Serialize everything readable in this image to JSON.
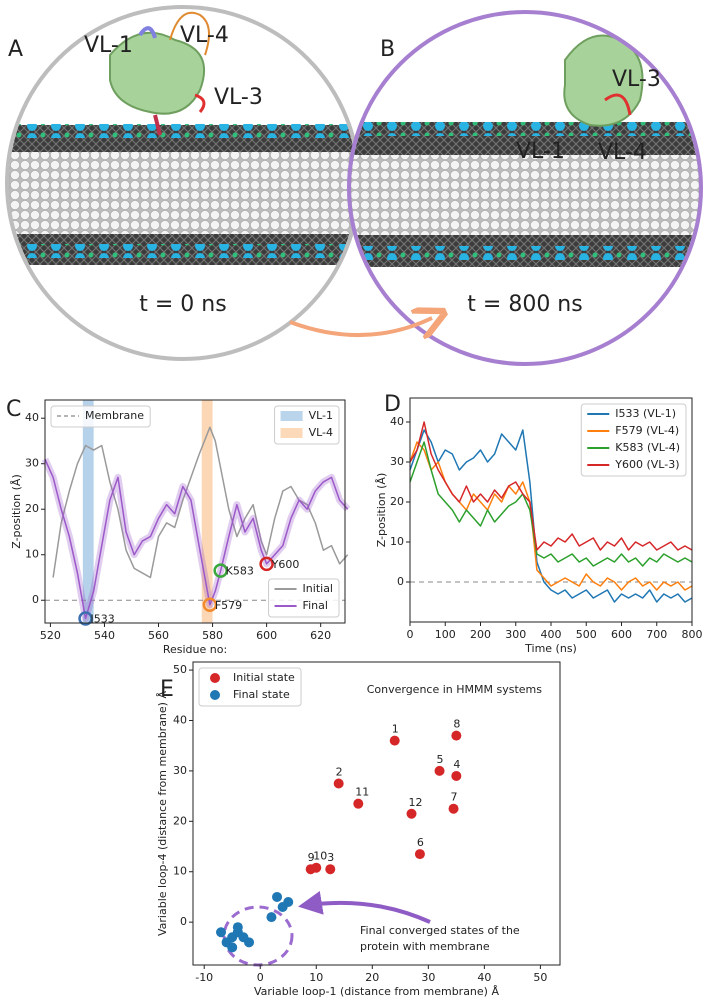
{
  "illustrations": [
    {
      "panel_label": "A",
      "border_color": "#bdbdbd",
      "caption": "t = 0 ns",
      "labels": [
        {
          "text": "VL-1",
          "color": "#2020c0"
        },
        {
          "text": "VL-4",
          "color": "#e07b10"
        },
        {
          "text": "VL-3",
          "color": "#e02020"
        }
      ]
    },
    {
      "panel_label": "B",
      "border_color": "#a77fd0",
      "caption": "t = 800 ns",
      "labels": [
        {
          "text": "VL-3",
          "color": "#e02020"
        },
        {
          "text": "VL-1",
          "color": "#2020c0"
        },
        {
          "text": "VL-4",
          "color": "#e07b10"
        }
      ]
    }
  ],
  "chart_data": [
    {
      "type": "line",
      "panel_label": "C",
      "x": [
        518,
        521,
        524,
        527,
        530,
        533,
        536,
        539,
        542,
        545,
        548,
        551,
        554,
        557,
        560,
        563,
        566,
        569,
        572,
        575,
        579,
        581,
        583,
        586,
        589,
        592,
        595,
        598,
        600,
        603,
        606,
        609,
        612,
        615,
        618,
        621,
        624,
        627,
        630
      ],
      "series": [
        {
          "name": "Initial",
          "color": "#9a9a9a",
          "values": [
            null,
            5,
            17,
            24,
            30,
            34,
            33,
            34,
            26,
            20,
            11,
            7,
            6,
            5,
            14,
            17,
            16,
            22,
            27,
            32,
            38,
            35,
            29,
            20,
            14,
            18,
            21,
            13,
            10,
            18,
            24,
            25,
            22,
            21,
            17,
            11,
            12,
            8,
            10
          ]
        },
        {
          "name": "Final",
          "color": "#9b59c9",
          "band": true,
          "values": [
            31,
            27,
            20,
            14,
            6,
            -4,
            2,
            12,
            22,
            27,
            15,
            10,
            13,
            14,
            18,
            21,
            19,
            25,
            22,
            12,
            -1,
            2,
            6.5,
            14,
            21,
            15,
            18,
            11,
            8,
            10,
            12,
            18,
            22,
            20,
            24,
            26,
            27,
            22,
            20
          ]
        }
      ],
      "xlim": [
        518,
        629
      ],
      "xticks": [
        520,
        540,
        560,
        580,
        600,
        620
      ],
      "ylim": [
        -5,
        44
      ],
      "yticks": [
        0,
        10,
        20,
        30,
        40
      ],
      "xlabel": "Residue no:",
      "ylabel": "Z-position (Å)",
      "reference_line": {
        "name": "Membrane",
        "value": 0,
        "color": "#888888"
      },
      "spans": [
        {
          "name": "VL-1",
          "range": [
            532,
            536
          ],
          "color": "#a9c9e6"
        },
        {
          "name": "VL-4",
          "range": [
            576,
            580
          ],
          "color": "#fbd0a8"
        }
      ],
      "highlights": [
        {
          "label": "I533",
          "x": 533,
          "y": -4,
          "color": "#3b6fb0"
        },
        {
          "label": "F579",
          "x": 579,
          "y": -1,
          "color": "#f28a2e"
        },
        {
          "label": "K583",
          "x": 583,
          "y": 6.5,
          "color": "#3aa83a"
        },
        {
          "label": "Y600",
          "x": 600,
          "y": 8,
          "color": "#d62728"
        }
      ],
      "legend": "lower right"
    },
    {
      "type": "line",
      "panel_label": "D",
      "x": [
        0,
        20,
        40,
        60,
        80,
        100,
        120,
        140,
        160,
        180,
        200,
        220,
        240,
        260,
        280,
        300,
        320,
        340,
        360,
        380,
        400,
        420,
        440,
        460,
        480,
        500,
        520,
        540,
        560,
        580,
        600,
        620,
        640,
        660,
        680,
        700,
        720,
        740,
        760,
        780,
        800
      ],
      "series": [
        {
          "name": "I533 (VL-1)",
          "color": "#1f77b4",
          "values": [
            28,
            33,
            38,
            35,
            30,
            33,
            32,
            28,
            30,
            31,
            33,
            30,
            32,
            37,
            35,
            33,
            38,
            25,
            5,
            0,
            -2,
            -3,
            -2,
            -4,
            -3,
            -2,
            -4,
            -3,
            -2,
            -5,
            -3,
            -4,
            -3,
            -4,
            -2,
            -5,
            -3,
            -4,
            -3,
            -5,
            -4
          ]
        },
        {
          "name": "F579 (VL-4)",
          "color": "#ff7f0e",
          "values": [
            30,
            35,
            33,
            28,
            30,
            25,
            22,
            20,
            18,
            22,
            20,
            18,
            22,
            20,
            24,
            22,
            25,
            20,
            3,
            1,
            -1,
            0,
            1,
            0,
            -1,
            2,
            0,
            -1,
            1,
            0,
            -2,
            0,
            1,
            -1,
            0,
            -2,
            0,
            -1,
            0,
            -2,
            -1
          ]
        },
        {
          "name": "K583 (VL-4)",
          "color": "#2ca02c",
          "values": [
            25,
            30,
            35,
            28,
            22,
            20,
            18,
            15,
            18,
            16,
            14,
            18,
            15,
            17,
            19,
            20,
            22,
            18,
            7,
            6,
            7,
            5,
            6,
            7,
            5,
            6,
            4,
            5,
            6,
            5,
            7,
            5,
            6,
            4,
            6,
            5,
            7,
            6,
            5,
            6,
            5
          ]
        },
        {
          "name": "Y600 (VL-3)",
          "color": "#d62728",
          "values": [
            30,
            33,
            40,
            32,
            28,
            25,
            22,
            20,
            24,
            20,
            22,
            20,
            23,
            21,
            24,
            25,
            22,
            20,
            8,
            10,
            9,
            11,
            10,
            12,
            9,
            10,
            11,
            8,
            10,
            9,
            11,
            8,
            10,
            9,
            10,
            8,
            9,
            10,
            8,
            9,
            8
          ]
        }
      ],
      "xlim": [
        0,
        800
      ],
      "xticks": [
        0,
        100,
        200,
        300,
        400,
        500,
        600,
        700,
        800
      ],
      "ylim": [
        -10,
        46
      ],
      "yticks": [
        0,
        10,
        20,
        30,
        40
      ],
      "xlabel": "Time (ns)",
      "ylabel": "Z-position (Å)",
      "reference_line": {
        "value": 0,
        "color": "#888888"
      },
      "legend": "upper right"
    },
    {
      "type": "scatter",
      "panel_label": "E",
      "title": "Convergence in HMMM systems",
      "series": [
        {
          "name": "Initial state",
          "color": "#d62728",
          "x": [
            24,
            14,
            12.5,
            35,
            32,
            28.5,
            34.5,
            35,
            9,
            10,
            17.5,
            27
          ],
          "values": [
            36,
            27.5,
            10.5,
            29,
            30,
            13.5,
            22.5,
            37,
            10.5,
            10.8,
            23.5,
            21.5
          ],
          "labels": [
            "1",
            "2",
            "3",
            "4",
            "5",
            "6",
            "7",
            "8",
            "9",
            "10",
            "11",
            "12"
          ]
        },
        {
          "name": "Final state",
          "color": "#1f77b4",
          "x": [
            -5,
            -4,
            -6,
            -3,
            -7,
            -5,
            2,
            3,
            5,
            -2,
            -4,
            4
          ],
          "values": [
            -3,
            -2,
            -4,
            -3,
            -2,
            -5,
            1,
            5,
            4,
            -4,
            -1,
            3
          ]
        }
      ],
      "xlim": [
        -12,
        53.5
      ],
      "xticks": [
        -10,
        0,
        10,
        20,
        30,
        40,
        50
      ],
      "ylim": [
        -8.5,
        51.6
      ],
      "yticks": [
        0,
        10,
        20,
        30,
        40,
        50
      ],
      "xlabel": "Variable loop-1 (distance from membrane) Å",
      "ylabel": "Variable loop-4 (distance from membrane) Å",
      "annotation": [
        "Final converged states of the",
        "protein with membrane"
      ],
      "legend": "upper left"
    }
  ]
}
